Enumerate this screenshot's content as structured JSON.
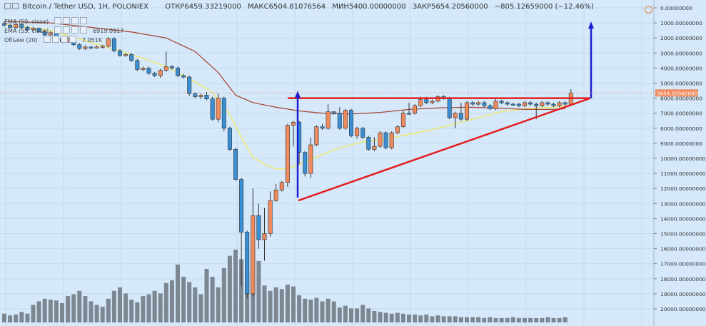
{
  "header": {
    "symbol": "Bitcoin / Tether USD, 1H, POLONIEX",
    "open_label": "ОТКР",
    "open": "6459.33219000",
    "high_label": "МАКС",
    "high": "6504.81076564",
    "low_label": "МИН",
    "low": "5400.00000000",
    "close_label": "ЗАКР",
    "close": "5654.20560000",
    "change": "−805.12659000 (−12.46%)"
  },
  "indicators": [
    {
      "label": "EMA (50, close)",
      "value": ""
    },
    {
      "label": "EMA (55, close)",
      "value": "6919.0917"
    },
    {
      "label": "Объем (20)",
      "value": "7.051K"
    }
  ],
  "colors": {
    "background": "#d5e9fb",
    "candle_up": "#f08a5d",
    "candle_down": "#3a8fd4",
    "volume": "#7d8791",
    "ema_fast": "#f2e85c",
    "ema_slow": "#a84a3a",
    "trendline": "#e31e1e",
    "arrow": "#1a1ecf",
    "price_tag": "#f08a5d"
  },
  "chart_data": {
    "type": "candlestick",
    "y_axis_inverted": true,
    "ylim": [
      0,
      20500
    ],
    "yticks": [
      "0.00000000",
      "1000.00000000",
      "2000.00000000",
      "3000.00000000",
      "4000.00000000",
      "5000.00000000",
      "6000.00000000",
      "7000.00000000",
      "8000.00000000",
      "9000.00000000",
      "10000.00000000",
      "11000.00000000",
      "12000.00000000",
      "13000.00000000",
      "14000.00000000",
      "15000.00000000",
      "16000.00000000",
      "17000.00000000",
      "18000.00000000",
      "19000.00000000",
      "20000.00000000"
    ],
    "current_price_label": "5654.20560000",
    "current_price": 5654.2056,
    "candles": [
      [
        1050,
        1150,
        900,
        1250
      ],
      [
        1150,
        1300,
        1050,
        1350
      ],
      [
        1300,
        1100,
        1000,
        1400
      ],
      [
        1100,
        1300,
        1000,
        1400
      ],
      [
        1300,
        1450,
        1200,
        1550
      ],
      [
        1450,
        1350,
        1250,
        1550
      ],
      [
        1350,
        1600,
        1300,
        1650
      ],
      [
        1600,
        1800,
        1500,
        1900
      ],
      [
        1800,
        1650,
        1550,
        1900
      ],
      [
        1650,
        2050,
        1600,
        2150
      ],
      [
        2050,
        2250,
        1950,
        2350
      ],
      [
        2250,
        2050,
        1950,
        2350
      ],
      [
        2050,
        2450,
        1950,
        2550
      ],
      [
        2450,
        2700,
        2350,
        2800
      ],
      [
        2700,
        2600,
        2500,
        2800
      ],
      [
        2600,
        2650,
        2550,
        2750
      ],
      [
        2650,
        2600,
        2500,
        2700
      ],
      [
        2600,
        2550,
        2450,
        2700
      ],
      [
        2550,
        2050,
        1950,
        2650
      ],
      [
        2050,
        2850,
        1950,
        2950
      ],
      [
        2850,
        3150,
        2750,
        3250
      ],
      [
        3150,
        3100,
        3000,
        3250
      ],
      [
        3100,
        3500,
        3000,
        3600
      ],
      [
        3500,
        4100,
        3400,
        4200
      ],
      [
        4100,
        4000,
        3900,
        4200
      ],
      [
        4000,
        4350,
        3900,
        4450
      ],
      [
        4350,
        4500,
        4250,
        4600
      ],
      [
        4500,
        4150,
        4050,
        4650
      ],
      [
        4150,
        3900,
        2900,
        4250
      ],
      [
        3900,
        4000,
        3800,
        4100
      ],
      [
        4000,
        4500,
        3900,
        4600
      ],
      [
        4500,
        4600,
        4400,
        4700
      ],
      [
        4600,
        5700,
        4500,
        5850
      ],
      [
        5700,
        5900,
        5600,
        6000
      ],
      [
        5900,
        5800,
        5700,
        6050
      ],
      [
        5800,
        6050,
        5600,
        6150
      ],
      [
        6050,
        7400,
        5900,
        7500
      ],
      [
        7400,
        6000,
        5700,
        7600
      ],
      [
        6000,
        8000,
        5900,
        8200
      ],
      [
        8000,
        9400,
        7900,
        9500
      ],
      [
        9400,
        11400,
        9300,
        11500
      ],
      [
        11400,
        14900,
        11300,
        18500
      ],
      [
        14900,
        19000,
        14800,
        19300
      ],
      [
        19000,
        13800,
        12000,
        19200
      ],
      [
        13800,
        15400,
        13000,
        16000
      ],
      [
        15400,
        15000,
        13300,
        16800
      ],
      [
        15000,
        12800,
        12200,
        15200
      ],
      [
        12800,
        12100,
        11700,
        12900
      ],
      [
        12100,
        11600,
        11500,
        12200
      ],
      [
        11600,
        7800,
        7700,
        11900
      ],
      [
        7800,
        7600,
        7500,
        9200
      ],
      [
        7600,
        9600,
        7500,
        10400
      ],
      [
        9600,
        11000,
        9500,
        11200
      ],
      [
        11000,
        9100,
        8600,
        11300
      ],
      [
        9100,
        7900,
        7800,
        9200
      ],
      [
        7900,
        8000,
        7700,
        8100
      ],
      [
        8000,
        6900,
        6400,
        8100
      ],
      [
        6900,
        7000,
        6900,
        7100
      ],
      [
        7000,
        8000,
        6600,
        8100
      ],
      [
        8000,
        6800,
        6700,
        8100
      ],
      [
        6800,
        8500,
        6700,
        8600
      ],
      [
        8500,
        8000,
        7900,
        8700
      ],
      [
        8000,
        8600,
        7900,
        8700
      ],
      [
        8600,
        9400,
        8500,
        9500
      ],
      [
        9400,
        9200,
        8600,
        9500
      ],
      [
        9200,
        8300,
        8200,
        9300
      ],
      [
        8300,
        9300,
        8200,
        9400
      ],
      [
        9300,
        8300,
        8200,
        9400
      ],
      [
        8300,
        7900,
        7800,
        8400
      ],
      [
        7900,
        7000,
        6800,
        8000
      ],
      [
        7000,
        7000,
        6300,
        7100
      ],
      [
        7000,
        6500,
        6400,
        7100
      ],
      [
        6500,
        6100,
        5900,
        6600
      ],
      [
        6100,
        6300,
        5900,
        6400
      ],
      [
        6300,
        6200,
        6100,
        6400
      ],
      [
        6200,
        5900,
        5800,
        6300
      ],
      [
        5900,
        6000,
        5800,
        6100
      ],
      [
        6000,
        7300,
        5900,
        7400
      ],
      [
        7300,
        7000,
        6900,
        8000
      ],
      [
        7000,
        7400,
        6300,
        7500
      ],
      [
        7400,
        6300,
        6200,
        7500
      ],
      [
        6300,
        6400,
        6200,
        6500
      ],
      [
        6400,
        6300,
        6200,
        6500
      ],
      [
        6300,
        6500,
        6200,
        6600
      ],
      [
        6500,
        6700,
        6400,
        6800
      ],
      [
        6700,
        6200,
        6000,
        6800
      ],
      [
        6200,
        6300,
        6100,
        6400
      ],
      [
        6300,
        6400,
        6200,
        6500
      ],
      [
        6400,
        6400,
        6300,
        6500
      ],
      [
        6400,
        6500,
        6300,
        6600
      ],
      [
        6500,
        6300,
        6200,
        6600
      ],
      [
        6300,
        6400,
        6200,
        6500
      ],
      [
        6400,
        6500,
        6300,
        7400
      ],
      [
        6500,
        6300,
        6200,
        6600
      ],
      [
        6300,
        6400,
        6200,
        6500
      ],
      [
        6400,
        6500,
        6300,
        6600
      ],
      [
        6500,
        6300,
        6200,
        6600
      ],
      [
        6300,
        6400,
        6200,
        6500
      ],
      [
        6400,
        5650,
        5400,
        6500
      ]
    ],
    "volumes": [
      1.0,
      0.8,
      0.9,
      1.2,
      1.0,
      2.0,
      2.4,
      2.7,
      2.6,
      2.5,
      2.2,
      3.0,
      3.2,
      3.6,
      3.0,
      2.4,
      2.0,
      1.8,
      2.7,
      3.6,
      4.0,
      3.3,
      2.6,
      2.3,
      3.0,
      3.2,
      3.6,
      3.3,
      4.5,
      4.8,
      6.6,
      5.2,
      4.6,
      4.0,
      3.2,
      6.1,
      5.2,
      4.0,
      6.2,
      7.6,
      8.3,
      7.2,
      5.6,
      8.1,
      7.0,
      4.2,
      3.6,
      4.0,
      3.8,
      4.3,
      4.1,
      3.1,
      2.7,
      2.6,
      2.8,
      2.4,
      2.7,
      2.4,
      1.7,
      1.9,
      1.6,
      1.6,
      2.0,
      1.6,
      1.3,
      1.2,
      1.1,
      1.0,
      1.1,
      1.0,
      0.9,
      0.9,
      0.8,
      0.9,
      0.7,
      0.8,
      0.7,
      0.7,
      0.7,
      0.6,
      0.6,
      0.6,
      0.6,
      0.5,
      0.6,
      0.5,
      0.5,
      0.5,
      0.6,
      0.5,
      0.5,
      0.5,
      0.5,
      0.5,
      0.6,
      0.5,
      0.5,
      0.6
    ],
    "ema_fast": [
      [
        0,
        1100
      ],
      [
        8,
        1500
      ],
      [
        15,
        2300
      ],
      [
        22,
        3100
      ],
      [
        28,
        3900
      ],
      [
        32,
        4700
      ],
      [
        36,
        5600
      ],
      [
        39,
        7100
      ],
      [
        41,
        8600
      ],
      [
        43,
        9900
      ],
      [
        45,
        10400
      ],
      [
        47,
        10700
      ],
      [
        49,
        10700
      ],
      [
        51,
        10400
      ],
      [
        54,
        9900
      ],
      [
        58,
        9300
      ],
      [
        62,
        8900
      ],
      [
        66,
        8700
      ],
      [
        70,
        8400
      ],
      [
        74,
        8100
      ],
      [
        78,
        7700
      ],
      [
        82,
        7300
      ],
      [
        86,
        6900
      ],
      [
        90,
        6700
      ],
      [
        95,
        6600
      ],
      [
        97,
        6500
      ]
    ],
    "ema_slow": [
      [
        0,
        900
      ],
      [
        8,
        1000
      ],
      [
        15,
        1300
      ],
      [
        22,
        1600
      ],
      [
        28,
        2000
      ],
      [
        33,
        2900
      ],
      [
        37,
        4300
      ],
      [
        40,
        5800
      ],
      [
        43,
        6300
      ],
      [
        47,
        6600
      ],
      [
        51,
        6850
      ],
      [
        55,
        7000
      ],
      [
        60,
        7050
      ],
      [
        65,
        6950
      ],
      [
        70,
        6750
      ],
      [
        75,
        6650
      ],
      [
        80,
        6600
      ],
      [
        85,
        6650
      ],
      [
        90,
        6750
      ],
      [
        95,
        6750
      ],
      [
        97,
        6700
      ]
    ],
    "drawings": {
      "resistance": [
        [
          403,
          6000
        ],
        [
          827,
          6000
        ]
      ],
      "support": [
        [
          418,
          12800
        ],
        [
          827,
          6000
        ]
      ],
      "arrow_up_left": [
        [
          417,
          12600
        ],
        [
          417,
          5600
        ]
      ],
      "arrow_up_right": [
        [
          828,
          6000
        ],
        [
          828,
          1000
        ]
      ]
    }
  }
}
